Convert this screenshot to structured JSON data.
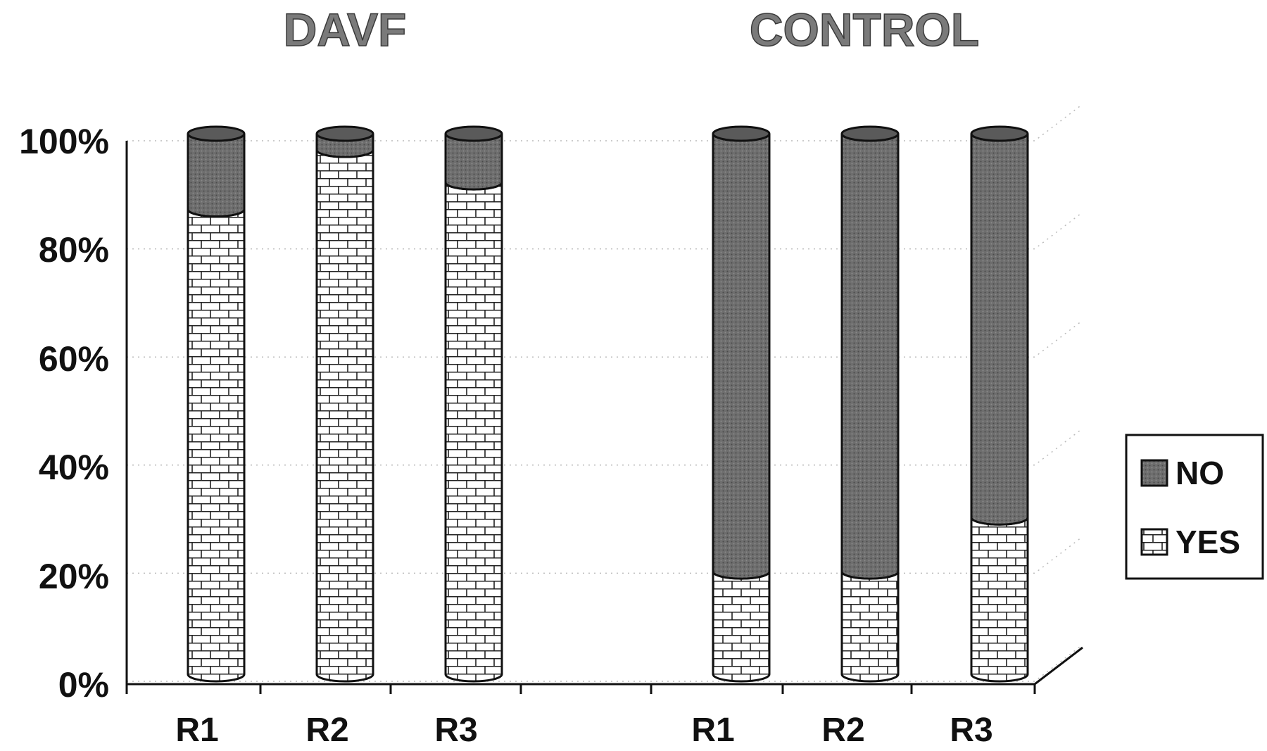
{
  "chart_data": {
    "type": "bar",
    "stacked": true,
    "percent_stacked": true,
    "groups": [
      {
        "title": "DAVF",
        "categories": [
          "R1",
          "R2",
          "R3"
        ]
      },
      {
        "title": "CONTROL",
        "categories": [
          "R1",
          "R2",
          "R3"
        ]
      }
    ],
    "series": [
      {
        "name": "YES",
        "values": [
          86,
          97,
          91,
          19,
          19,
          29
        ]
      },
      {
        "name": "NO",
        "values": [
          14,
          3,
          9,
          81,
          81,
          71
        ]
      }
    ],
    "ylim": [
      0,
      100
    ],
    "yticks": [
      "0%",
      "20%",
      "40%",
      "60%",
      "80%",
      "100%"
    ],
    "legend": {
      "position": "right",
      "items": [
        "NO",
        "YES"
      ]
    },
    "colors": {
      "NO": "#6e6e6e",
      "YES": "#ffffff"
    },
    "grid": true
  }
}
